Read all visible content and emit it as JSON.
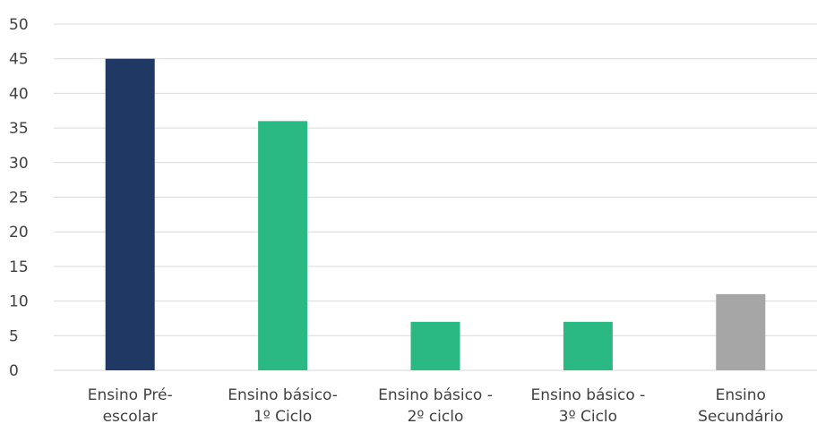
{
  "chart_data": {
    "type": "bar",
    "categories": [
      [
        "Ensino Pré-",
        "escolar"
      ],
      [
        "Ensino básico-",
        "1º Ciclo"
      ],
      [
        "Ensino básico -",
        "2º ciclo"
      ],
      [
        "Ensino básico -",
        "3º Ciclo"
      ],
      [
        "Ensino",
        "Secundário"
      ]
    ],
    "values": [
      45,
      36,
      7,
      7,
      11
    ],
    "colors": [
      "#203864",
      "#2bb983",
      "#2bb983",
      "#2bb983",
      "#a6a6a6"
    ],
    "ylim": [
      0,
      50
    ],
    "yticks": [
      0,
      5,
      10,
      15,
      20,
      25,
      30,
      35,
      40,
      45,
      50
    ],
    "grid": true,
    "legend": "none",
    "title": "",
    "xlabel": "",
    "ylabel": ""
  }
}
